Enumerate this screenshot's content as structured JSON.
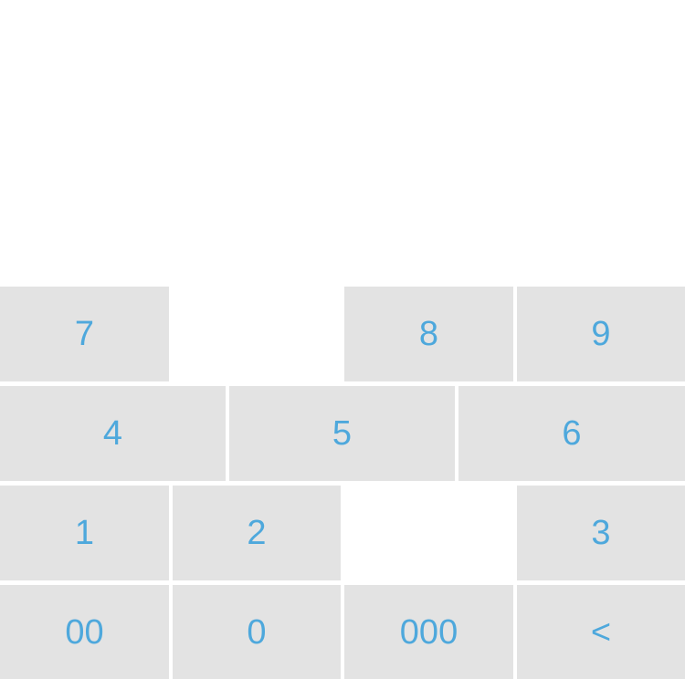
{
  "keypad": {
    "rows": [
      {
        "keys": [
          {
            "label": "7"
          },
          {
            "label": "8"
          },
          {
            "label": "9"
          }
        ]
      },
      {
        "keys": [
          {
            "label": "4"
          },
          {
            "label": "5"
          },
          {
            "label": "6"
          }
        ]
      },
      {
        "keys": [
          {
            "label": "1"
          },
          {
            "label": "2"
          },
          {
            "label": "3"
          }
        ]
      },
      {
        "keys": [
          {
            "label": "00"
          },
          {
            "label": "0"
          },
          {
            "label": "000"
          },
          {
            "label": "<"
          }
        ]
      }
    ]
  },
  "colors": {
    "key_background": "#e3e3e3",
    "key_text": "#4ea8dc",
    "page_background": "#ffffff"
  }
}
